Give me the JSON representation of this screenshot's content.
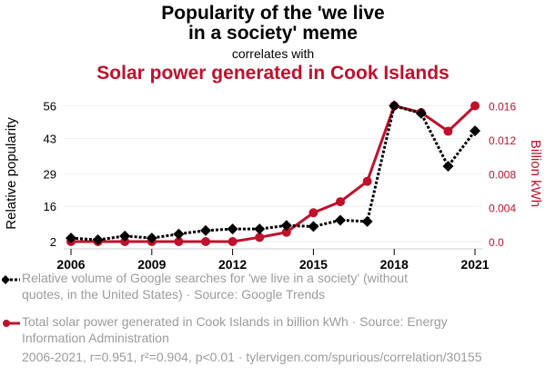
{
  "header": {
    "title_line1": "Popularity of the 'we live",
    "title_line2": "in a society' meme",
    "connector": "correlates with",
    "title2": "Solar power generated in Cook Islands"
  },
  "colors": {
    "series1": "#000000",
    "series2": "#c0102b",
    "grid": "#eeeeee",
    "legend_text": "#9b9b9b"
  },
  "legend": [
    {
      "icon": "black-diamond-dotted-line-icon",
      "text_line1": "Relative volume of Google searches for 'we live in a society' (without",
      "text_line2": "quotes, in the United States) · Source: Google Trends"
    },
    {
      "icon": "red-circle-line-icon",
      "text_line1": "Total solar power generated in Cook Islands in billion kWh · Source: Energy",
      "text_line2": "Information Administration"
    }
  ],
  "footer": "2006-2021, r=0.951, r²=0.904, p<0.01 · tylervigen.com/spurious/correlation/30155",
  "chart_data": {
    "type": "line",
    "title": "Popularity of the 'we live in a society' meme correlates with Solar power generated in Cook Islands",
    "x": [
      2006,
      2007,
      2008,
      2009,
      2010,
      2011,
      2012,
      2013,
      2014,
      2015,
      2016,
      2017,
      2018,
      2019,
      2020,
      2021
    ],
    "x_ticks": [
      "2006",
      "2009",
      "2012",
      "2015",
      "2018",
      "2021"
    ],
    "y_left": {
      "label": "Relative popularity",
      "ticks": [
        "2",
        "16",
        "29",
        "43",
        "56"
      ],
      "range": [
        2,
        56
      ]
    },
    "y_right": {
      "label": "Billion kWh",
      "ticks": [
        "0.0",
        "0.004",
        "0.008",
        "0.012",
        "0.016"
      ],
      "range": [
        0,
        0.016
      ]
    },
    "grid": true,
    "legend_position": "bottom",
    "series": [
      {
        "name": "Relative volume of Google searches for 'we live in a society'",
        "axis": "left",
        "style": "dotted-diamond",
        "color": "#000000",
        "values": [
          3.4,
          2.7,
          4.2,
          3.4,
          5,
          6.4,
          7,
          7,
          8.4,
          8,
          10.5,
          10,
          56,
          53,
          32,
          46
        ]
      },
      {
        "name": "Total solar power generated in Cook Islands (billion kWh)",
        "axis": "right",
        "style": "solid-circle",
        "color": "#c0102b",
        "values": [
          0,
          0,
          0,
          0,
          0,
          0,
          0,
          0.0005,
          0.0011,
          0.0034,
          0.0047,
          0.0071,
          0.016,
          0.0152,
          0.013,
          0.016
        ]
      }
    ]
  }
}
